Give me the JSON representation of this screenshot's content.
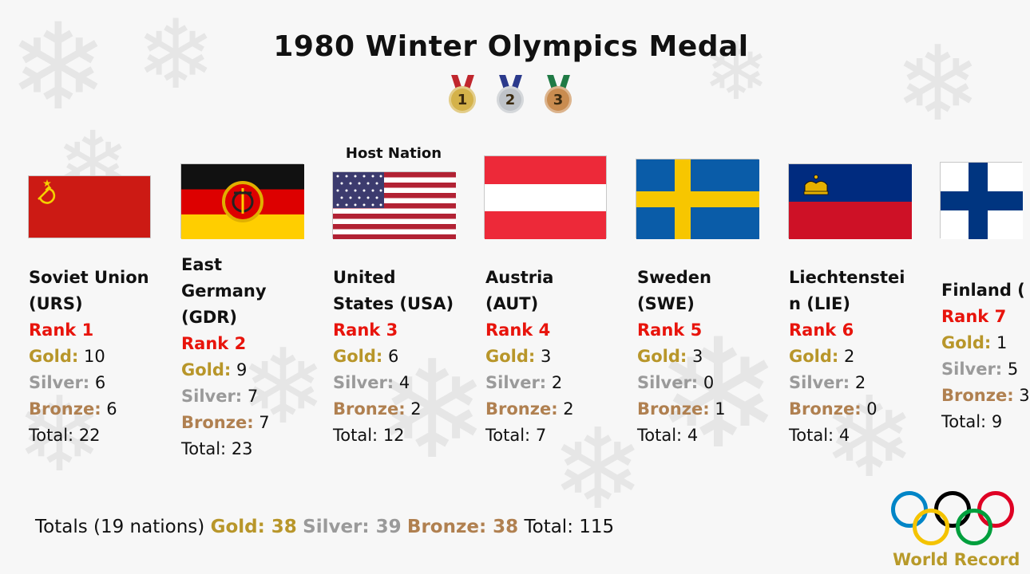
{
  "title": "1980 Winter Olympics Medal",
  "medal_icons": [
    {
      "number": "1",
      "kind": "gold",
      "ribbon": "#c0262d",
      "disc": "#d4b24a"
    },
    {
      "number": "2",
      "kind": "silver",
      "ribbon": "#2b3a8c",
      "disc": "#bfc3c8"
    },
    {
      "number": "3",
      "kind": "bronze",
      "ribbon": "#1f7a45",
      "disc": "#c98c50"
    }
  ],
  "host_label": "Host Nation",
  "labels": {
    "gold": "Gold:",
    "silver": "Silver:",
    "bronze": "Bronze:",
    "total": "Total:"
  },
  "countries": [
    {
      "name": "Soviet Union (URS)",
      "rank": "Rank 1",
      "gold": "10",
      "silver": "6",
      "bronze": "6",
      "total": "22",
      "flag": "ussr-flag"
    },
    {
      "name": "East Germany (GDR)",
      "rank": "Rank 2",
      "gold": "9",
      "silver": "7",
      "bronze": "7",
      "total": "23",
      "flag": "gdr-flag"
    },
    {
      "name": "United States (USA)",
      "rank": "Rank 3",
      "gold": "6",
      "silver": "4",
      "bronze": "2",
      "total": "12",
      "flag": "usa-flag"
    },
    {
      "name": "Austria (AUT)",
      "rank": "Rank 4",
      "gold": "3",
      "silver": "2",
      "bronze": "2",
      "total": "7",
      "flag": "austria-flag"
    },
    {
      "name": "Sweden (SWE)",
      "rank": "Rank 5",
      "gold": "3",
      "silver": "0",
      "bronze": "1",
      "total": "4",
      "flag": "sweden-flag"
    },
    {
      "name": "Liechtenstei n (LIE)",
      "rank": "Rank 6",
      "gold": "2",
      "silver": "2",
      "bronze": "0",
      "total": "4",
      "flag": "liechtenstein-flag"
    },
    {
      "name": "Finland (",
      "rank": "Rank 7",
      "gold": "1",
      "silver": "5",
      "bronze": "3",
      "total": "9",
      "flag": "finland-flag"
    }
  ],
  "totals": {
    "prefix": "Totals (19 nations)",
    "gold_label": "Gold: 38",
    "silver_label": "Silver: 39",
    "bronze_label": "Bronze: 38",
    "total_label": "Total: 115"
  },
  "logo_text": "World Record",
  "colors": {
    "rank": "#e8140c",
    "gold": "#b8962a",
    "silver": "#9a9a9a",
    "bronze": "#b08050",
    "rings": [
      "#0085c7",
      "#f4c300",
      "#000000",
      "#009f3d",
      "#df0024"
    ]
  }
}
